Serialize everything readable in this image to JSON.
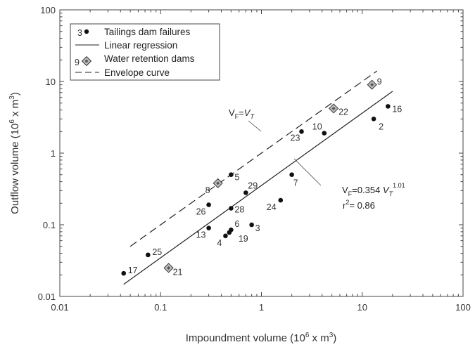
{
  "chart_data": {
    "type": "scatter",
    "scale": "log-log",
    "xlim": [
      0.01,
      100
    ],
    "ylim": [
      0.01,
      100
    ],
    "x_ticks": [
      "0.01",
      "0.1",
      "1",
      "10",
      "100"
    ],
    "y_ticks": [
      "0.01",
      "0.1",
      "1",
      "10",
      "100"
    ],
    "grid": false,
    "legend_position": "top-left",
    "legend": {
      "tailings_number": "3",
      "tailings": "Tailings dam failures",
      "regression": "Linear regression",
      "water_number": "9",
      "water": "Water retention dams",
      "envelope": "Envelope curve"
    },
    "series": [
      {
        "name": "Tailings dam failures",
        "marker": "circle",
        "points": [
          {
            "id": "17",
            "x": 0.043,
            "y": 0.021
          },
          {
            "id": "25",
            "x": 0.075,
            "y": 0.038
          },
          {
            "id": "13",
            "x": 0.3,
            "y": 0.09
          },
          {
            "id": "26",
            "x": 0.3,
            "y": 0.19
          },
          {
            "id": "4",
            "x": 0.44,
            "y": 0.07
          },
          {
            "id": "19",
            "x": 0.48,
            "y": 0.078
          },
          {
            "id": "6",
            "x": 0.5,
            "y": 0.085
          },
          {
            "id": "28",
            "x": 0.5,
            "y": 0.17
          },
          {
            "id": "5",
            "x": 0.5,
            "y": 0.5
          },
          {
            "id": "29",
            "x": 0.7,
            "y": 0.28
          },
          {
            "id": "3",
            "x": 0.8,
            "y": 0.1
          },
          {
            "id": "24",
            "x": 1.55,
            "y": 0.22
          },
          {
            "id": "7",
            "x": 2.0,
            "y": 0.5
          },
          {
            "id": "23",
            "x": 2.5,
            "y": 2.0
          },
          {
            "id": "10",
            "x": 4.2,
            "y": 1.9
          },
          {
            "id": "2",
            "x": 13.0,
            "y": 3.0
          },
          {
            "id": "16",
            "x": 18.0,
            "y": 4.5
          }
        ]
      },
      {
        "name": "Water retention dams",
        "marker": "diamond",
        "points": [
          {
            "id": "21",
            "x": 0.12,
            "y": 0.025
          },
          {
            "id": "8",
            "x": 0.37,
            "y": 0.38
          },
          {
            "id": "22",
            "x": 5.2,
            "y": 4.2
          },
          {
            "id": "9",
            "x": 12.5,
            "y": 9.0
          }
        ]
      }
    ],
    "lines": [
      {
        "name": "Linear regression",
        "style": "solid",
        "coef": 0.354,
        "exp": 1.01,
        "x_range": [
          0.043,
          20
        ]
      },
      {
        "name": "Envelope curve",
        "style": "dashed",
        "coef": 1.0,
        "exp": 1.0,
        "x_range": [
          0.05,
          14
        ]
      }
    ],
    "annotations": {
      "envelope_eq": {
        "a": "V",
        "sub": "F",
        "eq": "=",
        "b": "V",
        "sub2": "T"
      },
      "regression_eq": {
        "a": "V",
        "sub": "F",
        "rest": "=0.354 ",
        "b": "V",
        "sub2": "T",
        "sup": "1.01"
      },
      "r2": {
        "r": "r",
        "sup": "2",
        "rest": "= 0.86"
      }
    },
    "xlabel": {
      "main": "Impoundment volume (10",
      "sup": "6",
      "rest": " x m",
      "sup2": "3",
      "end": ")"
    },
    "ylabel": {
      "main": "Outflow volume (10",
      "sup": "6",
      "rest": " x m",
      "sup2": "3",
      "end": ")"
    }
  }
}
